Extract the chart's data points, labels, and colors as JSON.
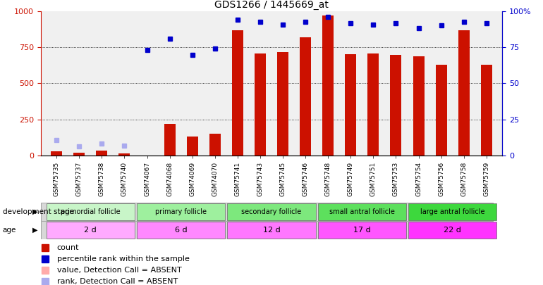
{
  "title": "GDS1266 / 1445669_at",
  "samples": [
    "GSM75735",
    "GSM75737",
    "GSM75738",
    "GSM75740",
    "GSM74067",
    "GSM74068",
    "GSM74069",
    "GSM74070",
    "GSM75741",
    "GSM75743",
    "GSM75745",
    "GSM75746",
    "GSM75748",
    "GSM75749",
    "GSM75751",
    "GSM75753",
    "GSM75754",
    "GSM75756",
    "GSM75758",
    "GSM75759"
  ],
  "count_values": [
    30,
    20,
    35,
    15,
    null,
    220,
    130,
    150,
    870,
    710,
    715,
    820,
    970,
    705,
    710,
    700,
    690,
    630,
    870,
    630
  ],
  "count_absent": [
    false,
    false,
    false,
    false,
    true,
    false,
    false,
    false,
    false,
    false,
    false,
    false,
    false,
    false,
    false,
    false,
    false,
    false,
    false,
    false
  ],
  "rank_values": [
    10.5,
    6.0,
    8.0,
    6.5,
    73.0,
    81.0,
    70.0,
    74.0,
    94.0,
    93.0,
    91.0,
    93.0,
    96.0,
    92.0,
    91.0,
    92.0,
    88.5,
    90.5,
    93.0,
    92.0
  ],
  "rank_absent": [
    true,
    true,
    true,
    true,
    false,
    false,
    false,
    false,
    false,
    false,
    false,
    false,
    false,
    false,
    false,
    false,
    false,
    false,
    false,
    false
  ],
  "group_labels": [
    "primordial follicle",
    "primary follicle",
    "secondary follicle",
    "small antral follicle",
    "large antral follicle"
  ],
  "group_starts": [
    0,
    4,
    8,
    12,
    16
  ],
  "group_ends": [
    4,
    8,
    12,
    16,
    20
  ],
  "group_colors": [
    "#c8f5c8",
    "#9ef09e",
    "#7de87d",
    "#5de05d",
    "#3dd83d"
  ],
  "age_labels": [
    "2 d",
    "6 d",
    "12 d",
    "17 d",
    "22 d"
  ],
  "age_starts": [
    0,
    4,
    8,
    12,
    16
  ],
  "age_ends": [
    4,
    8,
    12,
    16,
    20
  ],
  "age_colors": [
    "#ffaaff",
    "#ff88ff",
    "#ff77ff",
    "#ff55ff",
    "#ff33ff"
  ],
  "ylim_left": [
    0,
    1000
  ],
  "ylim_right": [
    0,
    100
  ],
  "yticks_left": [
    0,
    250,
    500,
    750,
    1000
  ],
  "yticks_right": [
    0,
    25,
    50,
    75,
    100
  ],
  "bar_color": "#cc1100",
  "bar_absent_color": "#ffaaaa",
  "rank_color": "#0000cc",
  "rank_absent_color": "#aaaaee",
  "grid_color": "#000000",
  "bg_color": "#f0f0f0",
  "label_color_left": "#cc1100",
  "label_color_right": "#0000cc",
  "legend_items": [
    {
      "color": "#cc1100",
      "label": "count"
    },
    {
      "color": "#0000cc",
      "label": "percentile rank within the sample"
    },
    {
      "color": "#ffaaaa",
      "label": "value, Detection Call = ABSENT"
    },
    {
      "color": "#aaaaee",
      "label": "rank, Detection Call = ABSENT"
    }
  ]
}
